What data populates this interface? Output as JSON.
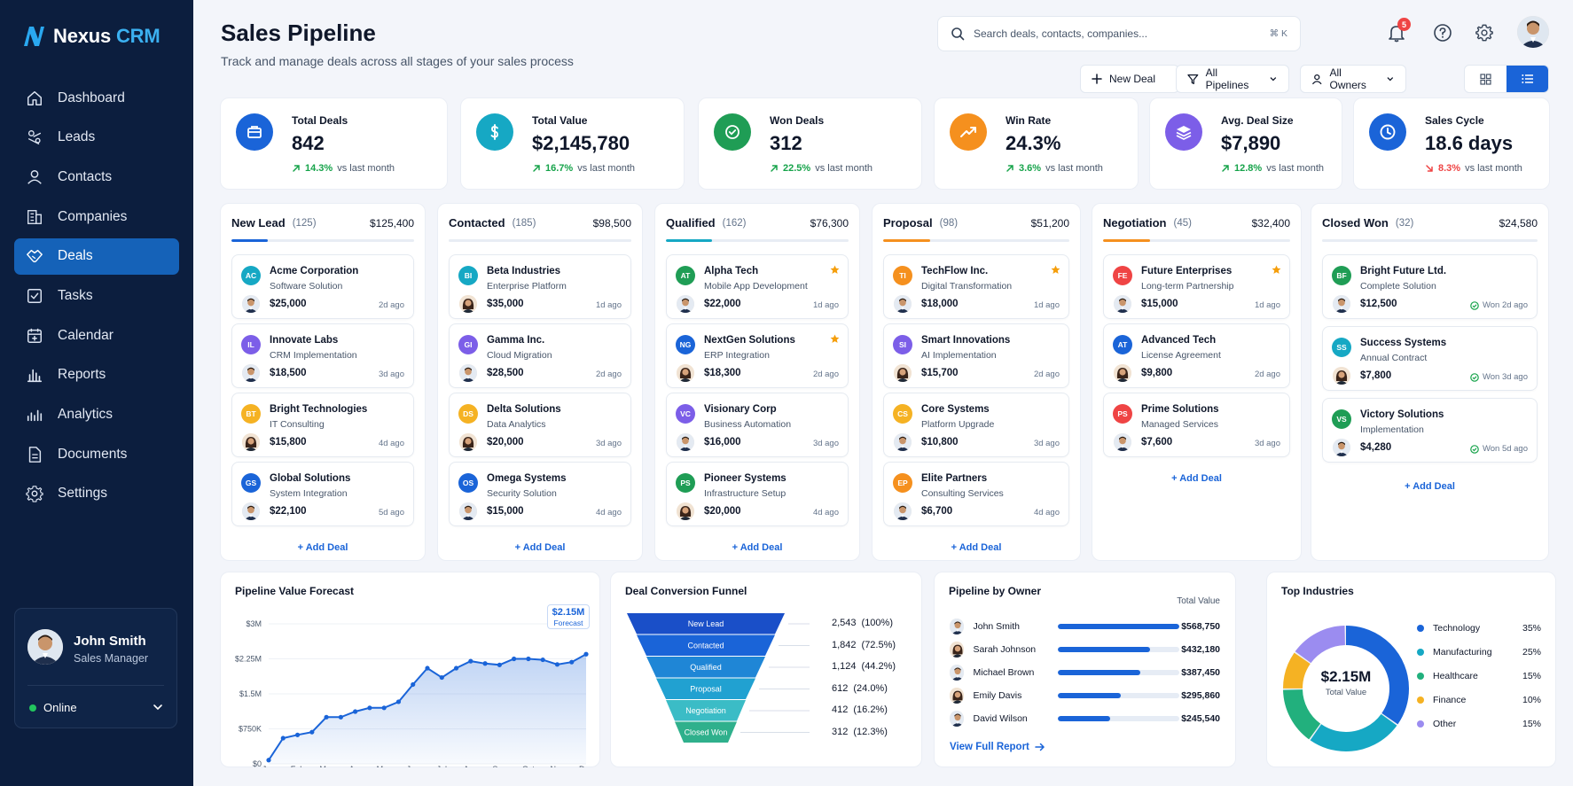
{
  "app": {
    "name_part1": "Nexus",
    "name_part2": "CRM"
  },
  "sidebar": {
    "items": [
      {
        "label": "Dashboard",
        "icon": "home-icon",
        "key": "dashboard"
      },
      {
        "label": "Leads",
        "icon": "leads-icon",
        "key": "leads"
      },
      {
        "label": "Contacts",
        "icon": "user-icon",
        "key": "contacts"
      },
      {
        "label": "Companies",
        "icon": "building-icon",
        "key": "companies"
      },
      {
        "label": "Deals",
        "icon": "handshake-icon",
        "key": "deals",
        "active": true
      },
      {
        "label": "Tasks",
        "icon": "checkbox-icon",
        "key": "tasks"
      },
      {
        "label": "Calendar",
        "icon": "calendar-icon",
        "key": "calendar"
      },
      {
        "label": "Reports",
        "icon": "bar-chart-icon",
        "key": "reports"
      },
      {
        "label": "Analytics",
        "icon": "analytics-icon",
        "key": "analytics"
      },
      {
        "label": "Documents",
        "icon": "document-icon",
        "key": "documents"
      },
      {
        "label": "Settings",
        "icon": "gear-icon",
        "key": "settings"
      }
    ],
    "user": {
      "name": "John Smith",
      "role": "Sales Manager",
      "status": "Online"
    }
  },
  "header": {
    "title": "Sales Pipeline",
    "subtitle": "Track and manage deals across all stages of your sales process",
    "search_placeholder": "Search deals, contacts, companies...",
    "search_shortcut": "⌘ K",
    "notification_count": "5"
  },
  "toolbar": {
    "new_deal": "New Deal",
    "pipelines": "All Pipelines",
    "owners": "All Owners"
  },
  "stats": [
    {
      "label": "Total Deals",
      "value": "842",
      "change": "14.3%",
      "direction": "up",
      "vs": "vs last month",
      "color": "#1a64d8",
      "icon": "briefcase-icon"
    },
    {
      "label": "Total Value",
      "value": "$2,145,780",
      "change": "16.7%",
      "direction": "up",
      "vs": "vs last month",
      "color": "#16a8c4",
      "icon": "dollar-icon"
    },
    {
      "label": "Won Deals",
      "value": "312",
      "change": "22.5%",
      "direction": "up",
      "vs": "vs last month",
      "color": "#1f9d55",
      "icon": "check-circle-icon"
    },
    {
      "label": "Win Rate",
      "value": "24.3%",
      "change": "3.6%",
      "direction": "up",
      "vs": "vs last month",
      "color": "#f5901e",
      "icon": "trending-up-icon"
    },
    {
      "label": "Avg. Deal Size",
      "value": "$7,890",
      "change": "12.8%",
      "direction": "up",
      "vs": "vs last month",
      "color": "#7c5ee8",
      "icon": "layers-icon"
    },
    {
      "label": "Sales Cycle",
      "value": "18.6 days",
      "change": "8.3%",
      "direction": "down",
      "vs": "vs last month",
      "color": "#1a64d8",
      "icon": "clock-icon"
    }
  ],
  "pipeline": {
    "add_label": "+ Add Deal",
    "columns": [
      {
        "name": "New Lead",
        "count": "(125)",
        "total": "$125,400",
        "color": "#1a64d8",
        "progress": 0.2,
        "deals": [
          {
            "initials": "AC",
            "color": "#16a8c4",
            "company": "Acme Corporation",
            "desc": "Software Solution",
            "amount": "$25,000",
            "time": "2d ago",
            "owner": "m"
          },
          {
            "initials": "IL",
            "color": "#7c5ee8",
            "company": "Innovate Labs",
            "desc": "CRM Implementation",
            "amount": "$18,500",
            "time": "3d ago",
            "owner": "m"
          },
          {
            "initials": "BT",
            "color": "#f5b223",
            "company": "Bright Technologies",
            "desc": "IT Consulting",
            "amount": "$15,800",
            "time": "4d ago",
            "owner": "f"
          },
          {
            "initials": "GS",
            "color": "#1a64d8",
            "company": "Global Solutions",
            "desc": "System Integration",
            "amount": "$22,100",
            "time": "5d ago",
            "owner": "m"
          }
        ]
      },
      {
        "name": "Contacted",
        "count": "(185)",
        "total": "$98,500",
        "color": "#1a64d8",
        "progress": 0.0,
        "deals": [
          {
            "initials": "BI",
            "color": "#16a8c4",
            "company": "Beta Industries",
            "desc": "Enterprise Platform",
            "amount": "$35,000",
            "time": "1d ago",
            "owner": "f"
          },
          {
            "initials": "GI",
            "color": "#7c5ee8",
            "company": "Gamma Inc.",
            "desc": "Cloud Migration",
            "amount": "$28,500",
            "time": "2d ago",
            "owner": "m"
          },
          {
            "initials": "DS",
            "color": "#f5b223",
            "company": "Delta Solutions",
            "desc": "Data Analytics",
            "amount": "$20,000",
            "time": "3d ago",
            "owner": "f"
          },
          {
            "initials": "OS",
            "color": "#1a64d8",
            "company": "Omega Systems",
            "desc": "Security Solution",
            "amount": "$15,000",
            "time": "4d ago",
            "owner": "m"
          }
        ]
      },
      {
        "name": "Qualified",
        "count": "(162)",
        "total": "$76,300",
        "color": "#16a8c4",
        "progress": 0.25,
        "deals": [
          {
            "initials": "AT",
            "color": "#1f9d55",
            "company": "Alpha Tech",
            "desc": "Mobile App Development",
            "amount": "$22,000",
            "time": "1d ago",
            "owner": "m",
            "starred": true
          },
          {
            "initials": "NG",
            "color": "#1a64d8",
            "company": "NextGen Solutions",
            "desc": "ERP Integration",
            "amount": "$18,300",
            "time": "2d ago",
            "owner": "f",
            "starred": true
          },
          {
            "initials": "VC",
            "color": "#7c5ee8",
            "company": "Visionary Corp",
            "desc": "Business Automation",
            "amount": "$16,000",
            "time": "3d ago",
            "owner": "m"
          },
          {
            "initials": "PS",
            "color": "#1f9d55",
            "company": "Pioneer Systems",
            "desc": "Infrastructure Setup",
            "amount": "$20,000",
            "time": "4d ago",
            "owner": "f"
          }
        ]
      },
      {
        "name": "Proposal",
        "count": "(98)",
        "total": "$51,200",
        "color": "#f5901e",
        "progress": 0.25,
        "deals": [
          {
            "initials": "TI",
            "color": "#f5901e",
            "company": "TechFlow Inc.",
            "desc": "Digital Transformation",
            "amount": "$18,000",
            "time": "1d ago",
            "owner": "m",
            "starred": true
          },
          {
            "initials": "SI",
            "color": "#7c5ee8",
            "company": "Smart Innovations",
            "desc": "AI Implementation",
            "amount": "$15,700",
            "time": "2d ago",
            "owner": "f"
          },
          {
            "initials": "CS",
            "color": "#f5b223",
            "company": "Core Systems",
            "desc": "Platform Upgrade",
            "amount": "$10,800",
            "time": "3d ago",
            "owner": "m"
          },
          {
            "initials": "EP",
            "color": "#f5901e",
            "company": "Elite Partners",
            "desc": "Consulting Services",
            "amount": "$6,700",
            "time": "4d ago",
            "owner": "m"
          }
        ]
      },
      {
        "name": "Negotiation",
        "count": "(45)",
        "total": "$32,400",
        "color": "#f5901e",
        "progress": 0.25,
        "deals": [
          {
            "initials": "FE",
            "color": "#ef4444",
            "company": "Future Enterprises",
            "desc": "Long-term Partnership",
            "amount": "$15,000",
            "time": "1d ago",
            "owner": "m",
            "starred": true
          },
          {
            "initials": "AT",
            "color": "#1a64d8",
            "company": "Advanced Tech",
            "desc": "License Agreement",
            "amount": "$9,800",
            "time": "2d ago",
            "owner": "f"
          },
          {
            "initials": "PS",
            "color": "#ef4444",
            "company": "Prime Solutions",
            "desc": "Managed Services",
            "amount": "$7,600",
            "time": "3d ago",
            "owner": "m"
          }
        ]
      },
      {
        "name": "Closed Won",
        "count": "(32)",
        "total": "$24,580",
        "color": "#1f9d55",
        "progress": 0.0,
        "deals": [
          {
            "initials": "BF",
            "color": "#1f9d55",
            "company": "Bright Future Ltd.",
            "desc": "Complete Solution",
            "amount": "$12,500",
            "time": "Won 2d ago",
            "owner": "m",
            "won": true
          },
          {
            "initials": "SS",
            "color": "#16a8c4",
            "company": "Success Systems",
            "desc": "Annual Contract",
            "amount": "$7,800",
            "time": "Won 3d ago",
            "owner": "f",
            "won": true
          },
          {
            "initials": "VS",
            "color": "#1f9d55",
            "company": "Victory Solutions",
            "desc": "Implementation",
            "amount": "$4,280",
            "time": "Won 5d ago",
            "owner": "m",
            "won": true
          }
        ]
      }
    ]
  },
  "forecast": {
    "title": "Pipeline Value Forecast",
    "callout_value": "$2.15M",
    "callout_label": "Forecast"
  },
  "funnel": {
    "title": "Deal Conversion Funnel",
    "stages": [
      {
        "label": "New Lead",
        "value": "2,543",
        "pct": "(100%)",
        "color": "#1a4fc8"
      },
      {
        "label": "Contacted",
        "value": "1,842",
        "pct": "(72.5%)",
        "color": "#1a64d8"
      },
      {
        "label": "Qualified",
        "value": "1,124",
        "pct": "(44.2%)",
        "color": "#1f86d6"
      },
      {
        "label": "Proposal",
        "value": "612",
        "pct": "(24.0%)",
        "color": "#21a1d1"
      },
      {
        "label": "Negotiation",
        "value": "412",
        "pct": "(16.2%)",
        "color": "#3bbcc6"
      },
      {
        "label": "Closed Won",
        "value": "312",
        "pct": "(12.3%)",
        "color": "#2fb08c"
      }
    ]
  },
  "owners": {
    "title": "Pipeline by Owner",
    "col_label": "Total Value",
    "link": "View Full Report",
    "rows": [
      {
        "name": "John Smith",
        "value": "$568,750",
        "fill": 1.0,
        "owner": "m"
      },
      {
        "name": "Sarah Johnson",
        "value": "$432,180",
        "fill": 0.76,
        "owner": "f"
      },
      {
        "name": "Michael Brown",
        "value": "$387,450",
        "fill": 0.68,
        "owner": "m"
      },
      {
        "name": "Emily Davis",
        "value": "$295,860",
        "fill": 0.52,
        "owner": "f"
      },
      {
        "name": "David Wilson",
        "value": "$245,540",
        "fill": 0.43,
        "owner": "m"
      }
    ]
  },
  "industries": {
    "title": "Top Industries",
    "center_value": "$2.15M",
    "center_label": "Total Value",
    "items": [
      {
        "name": "Technology",
        "pct": "35%",
        "share": 35,
        "color": "#1a64d8"
      },
      {
        "name": "Manufacturing",
        "pct": "25%",
        "share": 25,
        "color": "#16a8c4"
      },
      {
        "name": "Healthcare",
        "pct": "15%",
        "share": 15,
        "color": "#22b07d"
      },
      {
        "name": "Finance",
        "pct": "10%",
        "share": 10,
        "color": "#f5b223"
      },
      {
        "name": "Other",
        "pct": "15%",
        "share": 15,
        "color": "#9b8cf0"
      }
    ]
  },
  "chart_data": {
    "type": "area",
    "title": "Pipeline Value Forecast",
    "categories": [
      "Jan",
      "Feb",
      "Mar",
      "Apr",
      "May",
      "Jun",
      "Jul",
      "Aug",
      "Sep",
      "Oct",
      "Nov",
      "Dec"
    ],
    "x": [
      0,
      0.5,
      1,
      1.5,
      2,
      2.5,
      3,
      3.5,
      4,
      4.5,
      5,
      5.5,
      6,
      6.5,
      7,
      7.5,
      8,
      8.5,
      9,
      9.5,
      10,
      10.5,
      11
    ],
    "values": [
      0.08,
      0.55,
      0.62,
      0.68,
      1.0,
      1.0,
      1.12,
      1.2,
      1.2,
      1.33,
      1.7,
      2.05,
      1.85,
      2.05,
      2.2,
      2.15,
      2.12,
      2.25,
      2.25,
      2.23,
      2.13,
      2.18,
      2.35
    ],
    "yticks": [
      "$0",
      "$750K",
      "$1.5M",
      "$2.25M",
      "$3M"
    ],
    "ylim": [
      0,
      3
    ],
    "series_unit": "$M"
  }
}
